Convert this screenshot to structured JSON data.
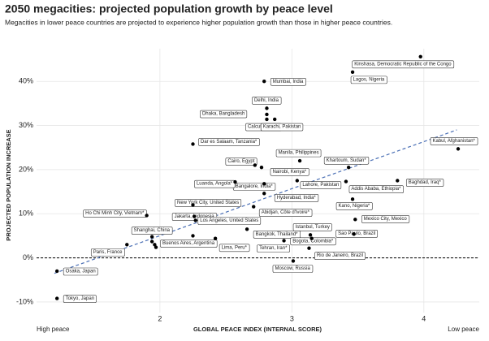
{
  "chart_data": {
    "type": "scatter",
    "title": "2050 megacities: projected population growth by peace level",
    "subtitle": "Megacities in lower peace countries are projected to experience higher population growth than those in higher peace countries.",
    "x_label": "GLOBAL PEACE INDEX (INTERNAL SCORE)",
    "y_label": "PROJECTED POPULATION INCREASE",
    "x_low_label": "High peace",
    "x_high_label": "Low peace",
    "xlim": [
      1.065,
      4.42
    ],
    "ylim": [
      -12.4,
      47.4
    ],
    "xticks": [
      2,
      3,
      4
    ],
    "yticks": [
      {
        "value": -10,
        "label": "-10%"
      },
      {
        "value": 0,
        "label": "0%"
      },
      {
        "value": 10,
        "label": "10%"
      },
      {
        "value": 20,
        "label": "20%"
      },
      {
        "value": 30,
        "label": "30%"
      },
      {
        "value": 40,
        "label": "40%"
      }
    ],
    "grid": true,
    "color": "#000000",
    "x": [
      3.975,
      3.46,
      2.79,
      2.81,
      2.81,
      2.81,
      2.87,
      2.25,
      4.26,
      3.06,
      3.43,
      2.72,
      2.77,
      3.8,
      3.04,
      3.41,
      2.79,
      2.57,
      2.79,
      2.25,
      3.46,
      2.71,
      1.9,
      2.26,
      3.48,
      2.27,
      2.66,
      3.14,
      3.47,
      1.94,
      2.25,
      2.42,
      3.15,
      2.94,
      1.75,
      3.13,
      3.01,
      1.22,
      1.22,
      1.94,
      1.96,
      1.97
    ],
    "values": [
      45.6,
      42.1,
      40.0,
      33.9,
      32.5,
      31.4,
      31.4,
      25.8,
      24.7,
      22.0,
      20.5,
      21.0,
      20.5,
      17.5,
      17.5,
      17.3,
      16.8,
      17.2,
      14.6,
      12.0,
      13.3,
      11.6,
      9.6,
      9.4,
      8.7,
      8.5,
      6.5,
      5.2,
      5.4,
      4.8,
      5.0,
      4.4,
      4.4,
      3.9,
      3.0,
      2.2,
      -0.7,
      -3.0,
      -9.2,
      3.7,
      3.0,
      2.4
    ],
    "labels": [
      "Kinshasa, Democratic Republic of the Congo",
      "Lagos, Nigeria",
      "Mumbai, India",
      "Delhi, India",
      "Dhaka, Bangladesh",
      "Calcutta, India",
      "Karachi, Pakistan",
      "Dar es Salaam, Tanzania*",
      "Kabul, Afghanistan*",
      "Manila, Philippines",
      "Khartoum, Sudan*",
      "Cairo, Egypt",
      "Nairobi, Kenya*",
      "Baghdad, Iraq*",
      "Lahore, Pakistan",
      "Addis Ababa, Ethiopia*",
      "Bangalore, India*",
      "Luanda, Angola*",
      "Hyderabad, India*",
      "New York City, United States",
      "Kano, Nigeria*",
      "Abidjan, Côte d'Ivoire*",
      "Ho Chi Minh City, Vietnam*",
      "Jakarta, Indonesia",
      "Mexico City, Mexico",
      "Los Angeles, United States",
      "Bangkok, Thailand*",
      "Istanbul, Turkey",
      "Sao Paulo, Brazil",
      "Shanghai, China",
      "Buenos Aires, Argentina",
      "Lima, Peru*",
      "Bogota, Colombia*",
      "Tehran, Iran*",
      "Paris, France",
      "Rio de Janeiro, Brazil",
      "Moscow, Russia",
      "Osaka, Japan",
      "Tokyo, Japan",
      null,
      null,
      null
    ],
    "trend": {
      "x": [
        1.2,
        4.25
      ],
      "y": [
        -3.5,
        29
      ],
      "color": "#4a6fb5"
    },
    "reference_y": 0
  }
}
